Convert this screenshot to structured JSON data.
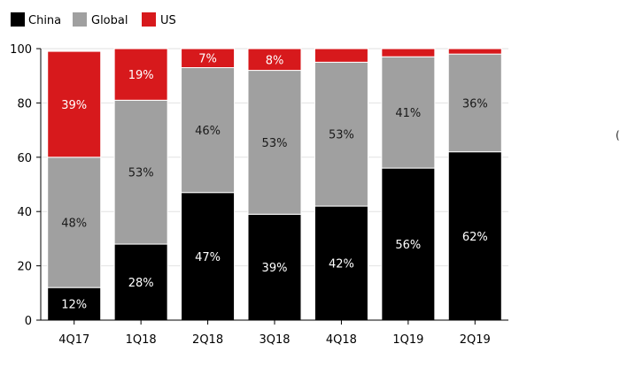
{
  "chart_data": {
    "type": "bar",
    "stacked": true,
    "percent": true,
    "categories": [
      "4Q17",
      "1Q18",
      "2Q18",
      "3Q18",
      "4Q18",
      "1Q19",
      "2Q19"
    ],
    "series": [
      {
        "name": "China",
        "values": [
          12,
          28,
          47,
          39,
          42,
          56,
          62
        ],
        "labels": [
          "12%",
          "28%",
          "47%",
          "39%",
          "42%",
          "56%",
          "62%"
        ],
        "color": "#000000",
        "label_color": "#ffffff"
      },
      {
        "name": "Global",
        "values": [
          48,
          53,
          46,
          53,
          53,
          41,
          36
        ],
        "labels": [
          "48%",
          "53%",
          "46%",
          "53%",
          "53%",
          "41%",
          "36%"
        ],
        "color": "#a0a0a0",
        "label_color": "#1a1a1a"
      },
      {
        "name": "US",
        "values": [
          39,
          19,
          7,
          8,
          5,
          3,
          3
        ],
        "labels": [
          "39%",
          "19%",
          "7%",
          "8%",
          "",
          "",
          ""
        ],
        "color": "#d7191c",
        "label_color": "#ffffff"
      }
    ],
    "ylim": [
      0,
      100
    ],
    "yticks": [
      0,
      20,
      40,
      60,
      80,
      100
    ],
    "grid": true,
    "legend": "top-left"
  },
  "stray_text": "("
}
